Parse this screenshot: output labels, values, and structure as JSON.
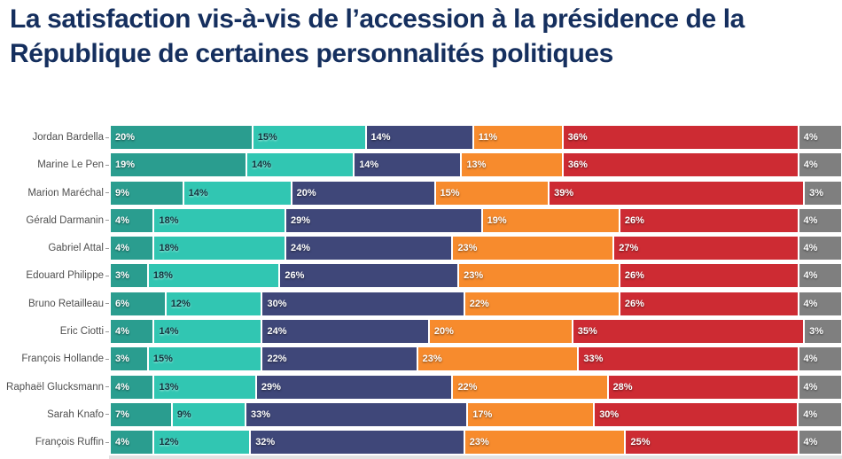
{
  "title": "La satisfaction vis-à-vis de l’accession à la présidence de la République de certaines personnalités politiques",
  "colors": {
    "background": "#ffffff",
    "title": "#152f5e",
    "category_label": "#4f4f4f",
    "axis_tick": "#9a9a9a",
    "cropped_strip": "#e2e2e2"
  },
  "chart_data": {
    "type": "bar",
    "variant": "horizontal-stacked",
    "unit": "%",
    "stack_total": 100,
    "legend": "none",
    "gridlines": false,
    "value_label_format": "{v}%",
    "categories": [
      "Jordan Bardella",
      "Marine Le Pen",
      "Marion Maréchal",
      "Gérald Darmanin",
      "Gabriel Attal",
      "Edouard Philippe",
      "Bruno Retailleau",
      "Eric Ciotti",
      "François Hollande",
      "Raphaël Glucksmann",
      "Sarah Knafo",
      "François Ruffin"
    ],
    "series": [
      {
        "name": "series-teal",
        "color": "#2a9d8f",
        "label_color": "#ffffff",
        "values": [
          20,
          19,
          9,
          4,
          4,
          3,
          6,
          4,
          3,
          4,
          7,
          4
        ]
      },
      {
        "name": "series-turquoise",
        "color": "#31c6b2",
        "label_color": "#10313b",
        "values": [
          15,
          14,
          14,
          18,
          18,
          18,
          12,
          14,
          15,
          13,
          9,
          12
        ]
      },
      {
        "name": "series-navy",
        "color": "#3f4779",
        "label_color": "#ffffff",
        "values": [
          14,
          14,
          20,
          29,
          24,
          26,
          30,
          24,
          22,
          29,
          33,
          32
        ]
      },
      {
        "name": "series-orange",
        "color": "#f78b2d",
        "label_color": "#ffffff",
        "values": [
          11,
          13,
          15,
          19,
          23,
          23,
          22,
          20,
          23,
          22,
          17,
          23
        ]
      },
      {
        "name": "series-red",
        "color": "#cd2b33",
        "label_color": "#ffffff",
        "values": [
          36,
          36,
          39,
          26,
          27,
          26,
          26,
          35,
          33,
          28,
          30,
          25
        ]
      },
      {
        "name": "series-gray",
        "color": "#7f7f7f",
        "label_color": "#ffffff",
        "values": [
          4,
          4,
          3,
          4,
          4,
          4,
          4,
          3,
          4,
          4,
          4,
          4
        ]
      }
    ]
  }
}
